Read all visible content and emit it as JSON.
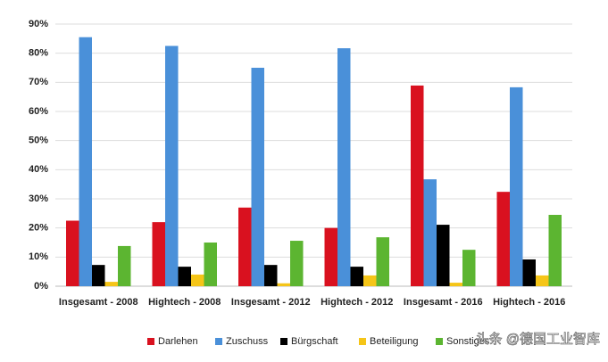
{
  "chart_data": {
    "type": "bar",
    "categories": [
      "Insgesamt - 2008",
      "Hightech - 2008",
      "Insgesamt - 2012",
      "Hightech - 2012",
      "Insgesamt - 2016",
      "Hightech - 2016"
    ],
    "series": [
      {
        "name": "Darlehen",
        "color": "#d9111f",
        "values": [
          22.5,
          22,
          27,
          20,
          68.9,
          32.4
        ]
      },
      {
        "name": "Zuschuss",
        "color": "#4a90d9",
        "values": [
          85.5,
          82.5,
          75,
          81.7,
          36.7,
          68.3
        ]
      },
      {
        "name": "Bürgschaft",
        "color": "#000000",
        "values": [
          7.3,
          6.7,
          7.3,
          6.7,
          21.1,
          9.2
        ]
      },
      {
        "name": "Beteiligung",
        "color": "#f5c518",
        "values": [
          1.5,
          4,
          1,
          3.7,
          1.2,
          3.7
        ]
      },
      {
        "name": "Sonstiges",
        "color": "#5cb531",
        "values": [
          13.8,
          15,
          15.6,
          16.8,
          12.5,
          24.5
        ]
      }
    ],
    "ylim": [
      0,
      90
    ],
    "yticks": [
      {
        "value": 0,
        "label": "0%"
      },
      {
        "value": 10,
        "label": "10%"
      },
      {
        "value": 20,
        "label": "20%"
      },
      {
        "value": 30,
        "label": "30%"
      },
      {
        "value": 40,
        "label": "40%"
      },
      {
        "value": 50,
        "label": "50%"
      },
      {
        "value": 60,
        "label": "60%"
      },
      {
        "value": 70,
        "label": "70%"
      },
      {
        "value": 80,
        "label": "80%"
      },
      {
        "value": 90,
        "label": "90%"
      }
    ],
    "grid": true,
    "watermark": "头条 @德国工业智库"
  }
}
